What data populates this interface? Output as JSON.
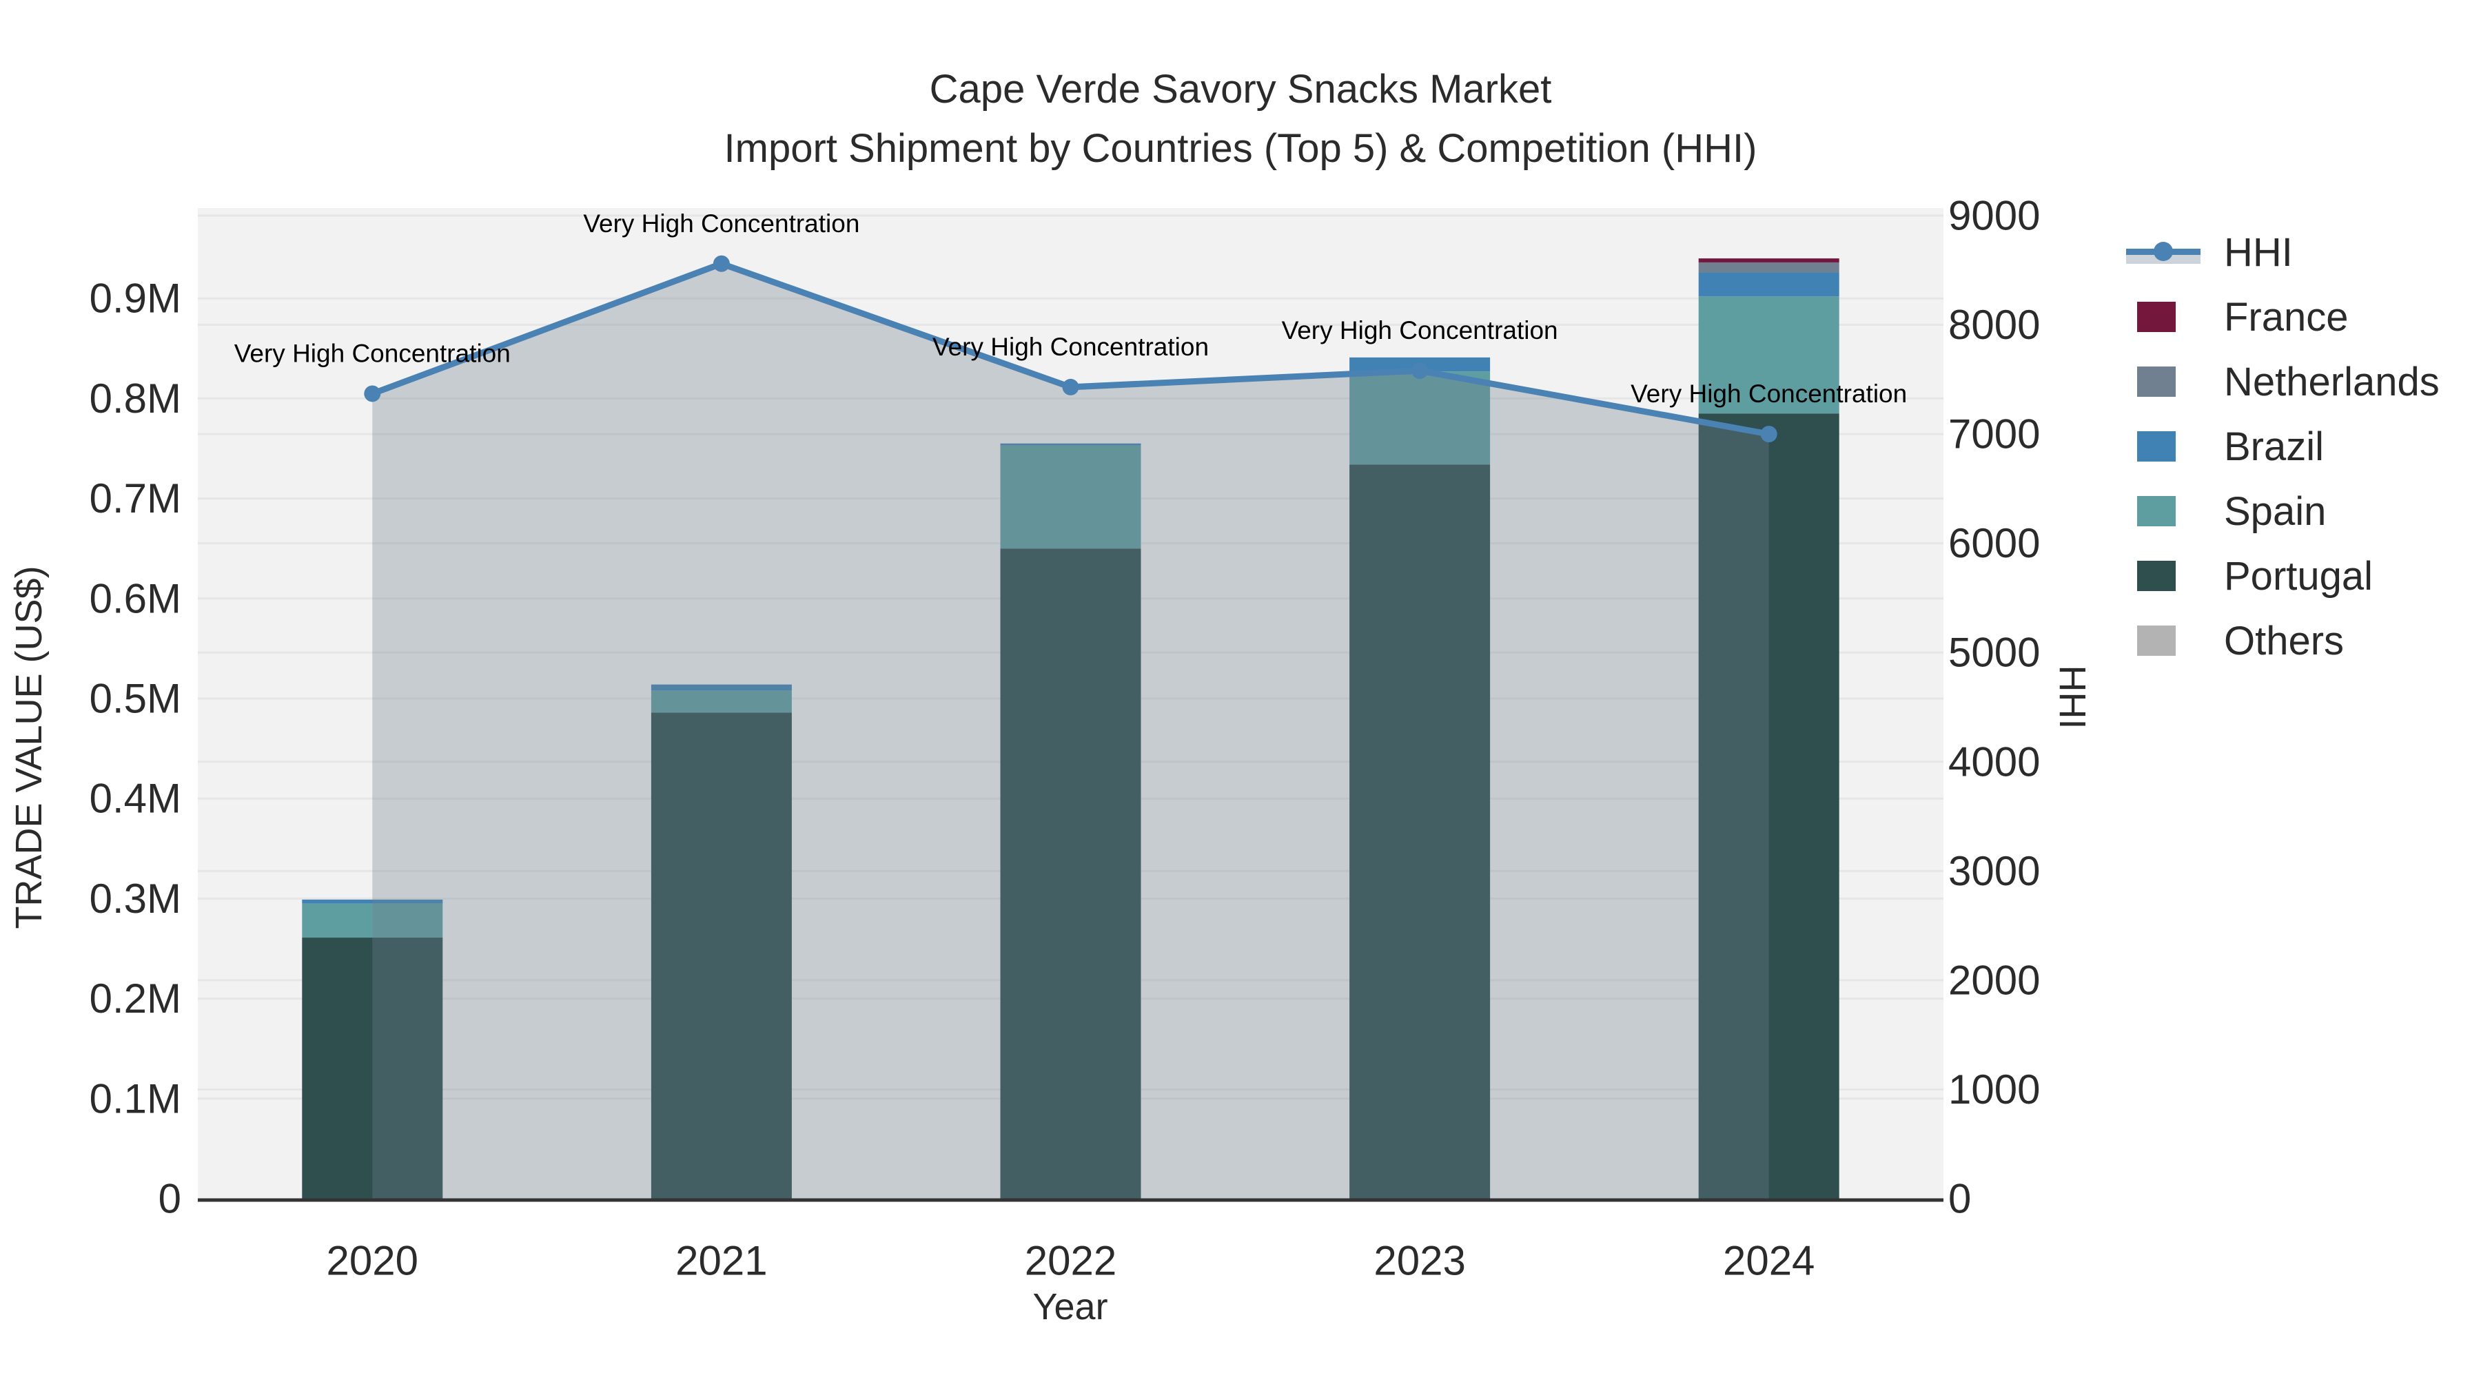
{
  "title": {
    "line1": "Cape Verde Savory Snacks Market",
    "line2": "Import Shipment by Countries (Top 5) & Competition (HHI)"
  },
  "axes": {
    "y_left": {
      "title": "TRADE VALUE (US$)",
      "ticks": [
        {
          "value": 0.0,
          "label": "0"
        },
        {
          "value": 0.1,
          "label": "0.1M"
        },
        {
          "value": 0.2,
          "label": "0.2M"
        },
        {
          "value": 0.3,
          "label": "0.3M"
        },
        {
          "value": 0.4,
          "label": "0.4M"
        },
        {
          "value": 0.5,
          "label": "0.5M"
        },
        {
          "value": 0.6,
          "label": "0.6M"
        },
        {
          "value": 0.7,
          "label": "0.7M"
        },
        {
          "value": 0.8,
          "label": "0.8M"
        },
        {
          "value": 0.9,
          "label": "0.9M"
        }
      ]
    },
    "y_right": {
      "title": "HHI",
      "ticks": [
        {
          "value": 0,
          "label": "0"
        },
        {
          "value": 1000,
          "label": "1000"
        },
        {
          "value": 2000,
          "label": "2000"
        },
        {
          "value": 3000,
          "label": "3000"
        },
        {
          "value": 4000,
          "label": "4000"
        },
        {
          "value": 5000,
          "label": "5000"
        },
        {
          "value": 6000,
          "label": "6000"
        },
        {
          "value": 7000,
          "label": "7000"
        },
        {
          "value": 8000,
          "label": "8000"
        },
        {
          "value": 9000,
          "label": "9000"
        }
      ]
    },
    "x": {
      "title": "Year"
    }
  },
  "legend": [
    {
      "label": "HHI",
      "type": "line",
      "color": "#4A82B4"
    },
    {
      "label": "France",
      "type": "swatch",
      "color": "#73173D"
    },
    {
      "label": "Netherlands",
      "type": "swatch",
      "color": "#708090"
    },
    {
      "label": "Brazil",
      "type": "swatch",
      "color": "#4182B4"
    },
    {
      "label": "Spain",
      "type": "swatch",
      "color": "#5F9EA0"
    },
    {
      "label": "Portugal",
      "type": "swatch",
      "color": "#2F4F4F"
    },
    {
      "label": "Others",
      "type": "swatch",
      "color": "#B3B3B3"
    }
  ],
  "chart_data": {
    "type": "bar",
    "subtype": "stacked bars (left axis) + line with area fill (right axis)",
    "categories": [
      "2020",
      "2021",
      "2022",
      "2023",
      "2024"
    ],
    "bar_value_unit": "million US$",
    "series": [
      {
        "name": "Portugal",
        "color": "#2F4F4F",
        "values": [
          0.261,
          0.486,
          0.65,
          0.734,
          0.785
        ]
      },
      {
        "name": "Spain",
        "color": "#5F9EA0",
        "values": [
          0.034,
          0.022,
          0.103,
          0.093,
          0.117
        ]
      },
      {
        "name": "Brazil",
        "color": "#4182B4",
        "values": [
          0.004,
          0.006,
          0.002,
          0.014,
          0.024
        ]
      },
      {
        "name": "Netherlands",
        "color": "#708090",
        "values": [
          0,
          0,
          0,
          0,
          0.01
        ]
      },
      {
        "name": "France",
        "color": "#73173D",
        "values": [
          0,
          0,
          0,
          0,
          0.004
        ]
      },
      {
        "name": "Others",
        "color": "#B3B3B3",
        "values": [
          0,
          0,
          0,
          0,
          0
        ]
      }
    ],
    "stack_order_bottom_to_top": [
      "Others",
      "Portugal",
      "Spain",
      "Brazil",
      "Netherlands",
      "France"
    ],
    "line_series": {
      "name": "HHI",
      "color": "#4A82B4",
      "area_fill": "rgba(112,128,144,0.33)",
      "values": [
        7370,
        8560,
        7430,
        7580,
        7000
      ]
    },
    "annotations": [
      {
        "category": "2020",
        "text": "Very High Concentration"
      },
      {
        "category": "2021",
        "text": "Very High Concentration"
      },
      {
        "category": "2022",
        "text": "Very High Concentration"
      },
      {
        "category": "2023",
        "text": "Very High Concentration"
      },
      {
        "category": "2024",
        "text": "Very High Concentration"
      }
    ],
    "ylim_left": [
      0,
      0.99
    ],
    "ylim_right": [
      0,
      9000
    ],
    "grid": true,
    "legend_position": "right",
    "title": "Cape Verde Savory Snacks Market — Import Shipment by Countries (Top 5) & Competition (HHI)",
    "xlabel": "Year",
    "ylabel_left": "TRADE VALUE (US$)",
    "ylabel_right": "HHI"
  },
  "style": {
    "plot_bg": "#F2F2F2",
    "grid_color": "#E6E6E6",
    "axis_line_color": "#333333",
    "tick_color": "#2B2B2B",
    "annotation_color": "#000000"
  }
}
